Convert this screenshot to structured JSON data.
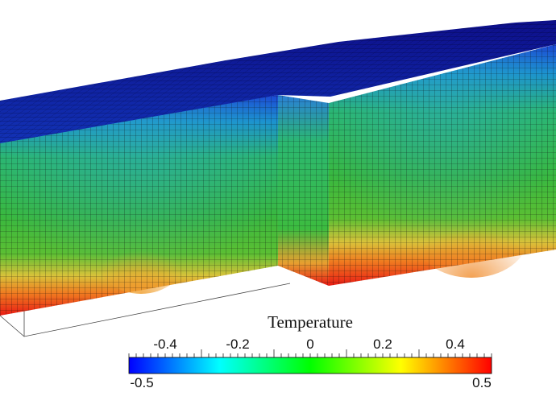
{
  "legend": {
    "title": "Temperature",
    "min_label": "-0.5",
    "max_label": "0.5",
    "range": [
      -0.5,
      0.5
    ],
    "ticks": [
      {
        "value": -0.4,
        "label": "-0.4"
      },
      {
        "value": -0.2,
        "label": "-0.2"
      },
      {
        "value": 0,
        "label": "0"
      },
      {
        "value": 0.2,
        "label": "0.2"
      },
      {
        "value": 0.4,
        "label": "0.4"
      }
    ],
    "colormap": [
      "#0000ff",
      "#00ffff",
      "#00ff00",
      "#ffff00",
      "#ff0000"
    ]
  }
}
